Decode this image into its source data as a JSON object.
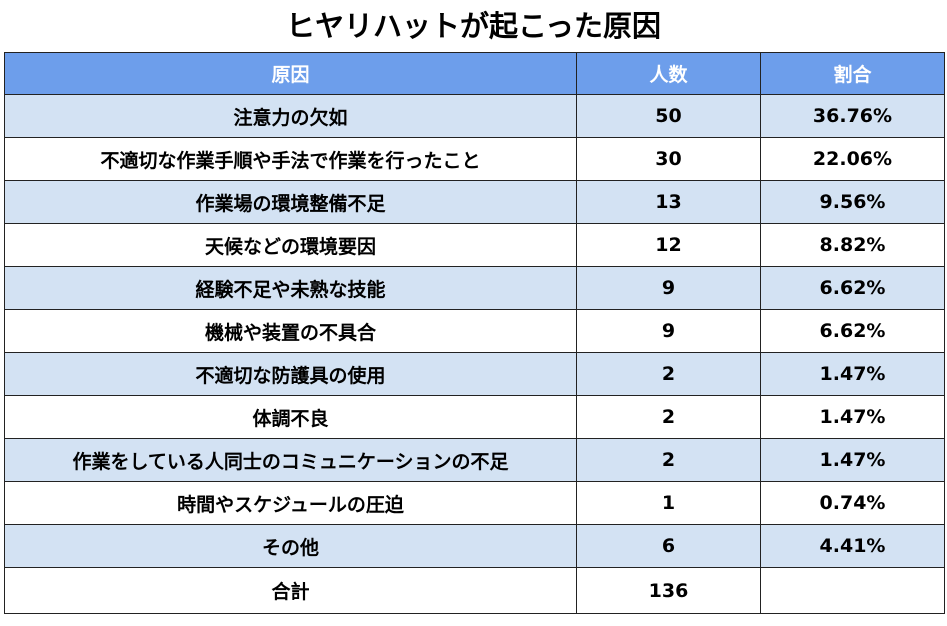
{
  "chart_data": {
    "type": "table",
    "title": "ヒヤリハットが起こった原因",
    "columns": [
      "原因",
      "人数",
      "割合"
    ],
    "rows": [
      {
        "cause": "注意力の欠如",
        "count": 50,
        "share": "36.76%"
      },
      {
        "cause": "不適切な作業手順や手法で作業を行ったこと",
        "count": 30,
        "share": "22.06%"
      },
      {
        "cause": "作業場の環境整備不足",
        "count": 13,
        "share": "9.56%"
      },
      {
        "cause": "天候などの環境要因",
        "count": 12,
        "share": "8.82%"
      },
      {
        "cause": "経験不足や未熟な技能",
        "count": 9,
        "share": "6.62%"
      },
      {
        "cause": "機械や装置の不具合",
        "count": 9,
        "share": "6.62%"
      },
      {
        "cause": "不適切な防護具の使用",
        "count": 2,
        "share": "1.47%"
      },
      {
        "cause": "体調不良",
        "count": 2,
        "share": "1.47%"
      },
      {
        "cause": "作業をしている人同士のコミュニケーションの不足",
        "count": 2,
        "share": "1.47%"
      },
      {
        "cause": "時間やスケジュールの圧迫",
        "count": 1,
        "share": "0.74%"
      },
      {
        "cause": "その他",
        "count": 6,
        "share": "4.41%"
      }
    ],
    "total": {
      "label": "合計",
      "count": 136,
      "share": ""
    }
  },
  "colors": {
    "header_bg": "#6d9eeb",
    "header_text": "#ffffff",
    "stripe_bg": "#d3e2f3",
    "plain_bg": "#ffffff",
    "border": "#222222"
  }
}
